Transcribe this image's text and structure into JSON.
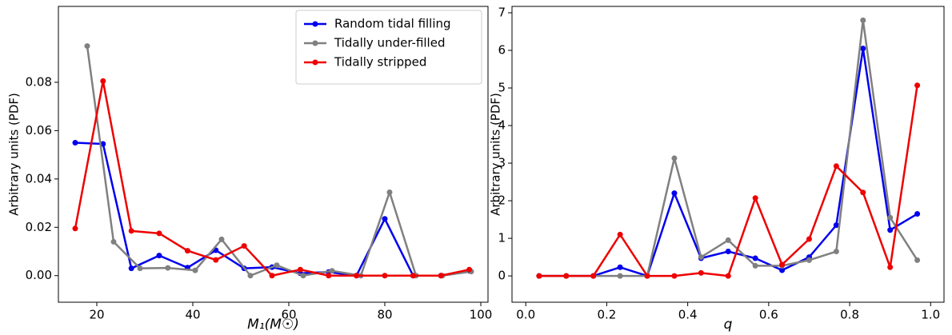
{
  "chart_data": [
    {
      "type": "line",
      "xlabel": "M₁(M☉)",
      "ylabel": "Arbitrary units (PDF)",
      "xlim": [
        12,
        101.5
      ],
      "ylim": [
        -0.011,
        0.1114
      ],
      "xticks": [
        20,
        40,
        60,
        80,
        100
      ],
      "yticks": [
        {
          "value": 0,
          "label": "0.00"
        },
        {
          "value": 0.02,
          "label": "0.02"
        },
        {
          "value": 0.04,
          "label": "0.04"
        },
        {
          "value": 0.06,
          "label": "0.06"
        },
        {
          "value": 0.08,
          "label": "0.08"
        }
      ],
      "legend": "upper right",
      "series": [
        {
          "name": "Random tidal filling",
          "color": "#0000ee",
          "x": [
            15.5,
            21.3,
            27.2,
            33,
            38.9,
            44.8,
            50.7,
            56.5,
            62.4,
            68.3,
            74.1,
            80,
            85.9,
            91.7,
            97.6
          ],
          "values": [
            0.055,
            0.0545,
            0.003,
            0.0083,
            0.0033,
            0.0105,
            0.003,
            0.0035,
            0.001,
            0.0015,
            0.0,
            0.0235,
            0.0,
            0.0,
            0.002
          ]
        },
        {
          "name": "Tidally under-filled",
          "color": "#808080",
          "x": [
            18,
            23.5,
            29,
            34.8,
            40.5,
            46,
            52,
            57.5,
            63,
            69,
            75,
            81,
            86.5,
            92,
            98
          ],
          "values": [
            0.095,
            0.014,
            0.003,
            0.0032,
            0.0022,
            0.015,
            0.0,
            0.0043,
            0.0,
            0.002,
            0.0,
            0.0345,
            0.0,
            0.0,
            0.0017
          ]
        },
        {
          "name": "Tidally stripped",
          "color": "#ee0000",
          "x": [
            15.5,
            21.3,
            27.2,
            33,
            38.9,
            44.8,
            50.7,
            56.5,
            62.4,
            68.3,
            74.1,
            80,
            85.9,
            91.7,
            97.6
          ],
          "values": [
            0.0195,
            0.0805,
            0.0185,
            0.0175,
            0.0103,
            0.0065,
            0.0123,
            0.0,
            0.0025,
            0.0,
            0.0,
            0.0,
            0.0,
            0.0,
            0.0025
          ]
        }
      ]
    },
    {
      "type": "line",
      "xlabel": "q",
      "ylabel": "Arbitrary units (PDF)",
      "xlim": [
        -0.034,
        1.033
      ],
      "ylim": [
        -0.7,
        7.17
      ],
      "xticks": [
        {
          "value": 0,
          "label": "0.0"
        },
        {
          "value": 0.2,
          "label": "0.2"
        },
        {
          "value": 0.4,
          "label": "0.4"
        },
        {
          "value": 0.6,
          "label": "0.6"
        },
        {
          "value": 0.8,
          "label": "0.8"
        },
        {
          "value": 1,
          "label": "1.0"
        }
      ],
      "yticks": [
        0,
        1,
        2,
        3,
        4,
        5,
        6,
        7
      ],
      "series": [
        {
          "color": "#0000ee",
          "x": [
            0.033,
            0.1,
            0.167,
            0.233,
            0.3,
            0.367,
            0.433,
            0.5,
            0.567,
            0.633,
            0.7,
            0.767,
            0.833,
            0.9,
            0.967
          ],
          "values": [
            0,
            0,
            0,
            0.23,
            0,
            2.2,
            0.47,
            0.65,
            0.47,
            0.15,
            0.5,
            1.35,
            6.05,
            1.22,
            1.65
          ]
        },
        {
          "color": "#808080",
          "x": [
            0.033,
            0.1,
            0.167,
            0.233,
            0.3,
            0.367,
            0.433,
            0.5,
            0.567,
            0.633,
            0.7,
            0.767,
            0.833,
            0.9,
            0.967
          ],
          "values": [
            0,
            0,
            0,
            0,
            0,
            3.13,
            0.5,
            0.95,
            0.27,
            0.27,
            0.42,
            0.65,
            6.8,
            1.55,
            0.42
          ]
        },
        {
          "color": "#ee0000",
          "x": [
            0.033,
            0.1,
            0.167,
            0.233,
            0.3,
            0.367,
            0.433,
            0.5,
            0.567,
            0.633,
            0.7,
            0.767,
            0.833,
            0.9,
            0.967
          ],
          "values": [
            0,
            0,
            0,
            1.1,
            0,
            0,
            0.08,
            0,
            2.07,
            0.3,
            0.98,
            2.92,
            2.22,
            0.23,
            5.07
          ]
        }
      ]
    }
  ]
}
